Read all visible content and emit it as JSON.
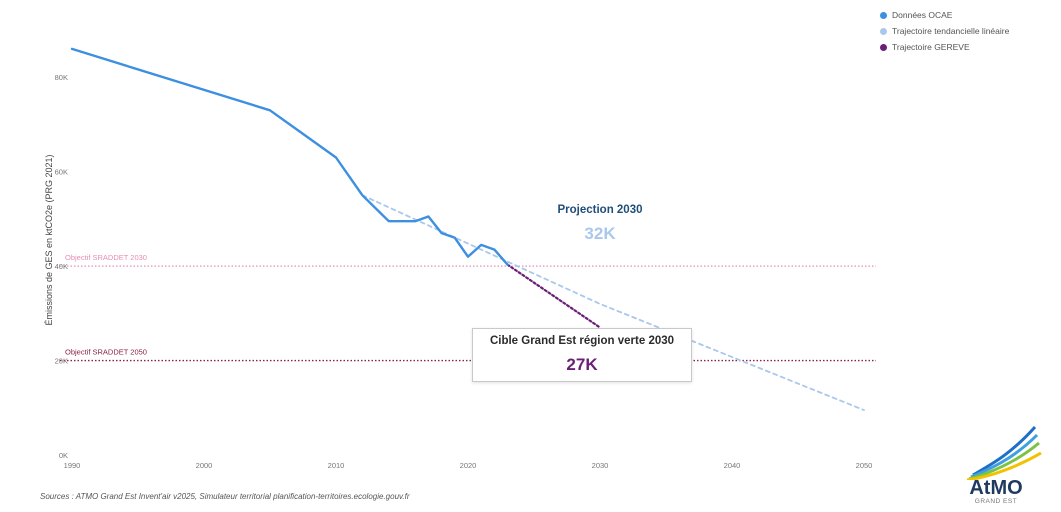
{
  "chart_data": {
    "type": "line",
    "ylabel": "Émissions de GES en ktCO2e (PRG 2021)",
    "xlabel": "",
    "xlim": [
      1990,
      2050
    ],
    "ylim": [
      0,
      90
    ],
    "x_ticks": [
      1990,
      2000,
      2010,
      2020,
      2030,
      2040,
      2050
    ],
    "x_tick_labels": [
      "1990",
      "2000",
      "2010",
      "2020",
      "2030",
      "2040",
      "2050"
    ],
    "y_ticks": [
      0,
      20,
      40,
      60,
      80
    ],
    "y_tick_labels": [
      "0K",
      "20K",
      "40K",
      "60K",
      "80K"
    ],
    "grid": false,
    "legend_position": "top-right",
    "series": [
      {
        "name": "Données OCAE",
        "color": "#3d8fe0",
        "style": "solid",
        "x": [
          1990,
          2005,
          2010,
          2012,
          2014,
          2016,
          2017,
          2018,
          2019,
          2020,
          2021,
          2022,
          2023
        ],
        "values": [
          86,
          73,
          63,
          55,
          49.5,
          49.5,
          50.5,
          47,
          46,
          42,
          44.5,
          43.5,
          40.3
        ]
      },
      {
        "name": "Trajectoire tendancielle linéaire",
        "color": "#a9c8ec",
        "style": "dashed",
        "x": [
          2012,
          2030,
          2050
        ],
        "values": [
          55,
          32,
          9.5
        ]
      },
      {
        "name": "Trajectoire GEREVE",
        "color": "#6a1e78",
        "style": "dotted",
        "x": [
          2023,
          2030
        ],
        "values": [
          40.3,
          27
        ]
      }
    ],
    "reference_lines": [
      {
        "label": "Objectif SRADDET 2030",
        "value": 40,
        "color": "#e58fb4"
      },
      {
        "label": "Objectif SRADDET 2050",
        "value": 20,
        "color": "#8b2244"
      }
    ],
    "annotations": [
      {
        "title": "Projection 2030",
        "value": "32K"
      },
      {
        "title": "Cible Grand Est région verte 2030",
        "value": "27K"
      }
    ]
  },
  "sources_text": "Sources : ATMO Grand Est Invent'air v2025, Simulateur territorial planification-territoires.ecologie.gouv.fr",
  "logo": {
    "brand_a": "At",
    "brand_b": "MO",
    "sub": "GRAND EST"
  }
}
